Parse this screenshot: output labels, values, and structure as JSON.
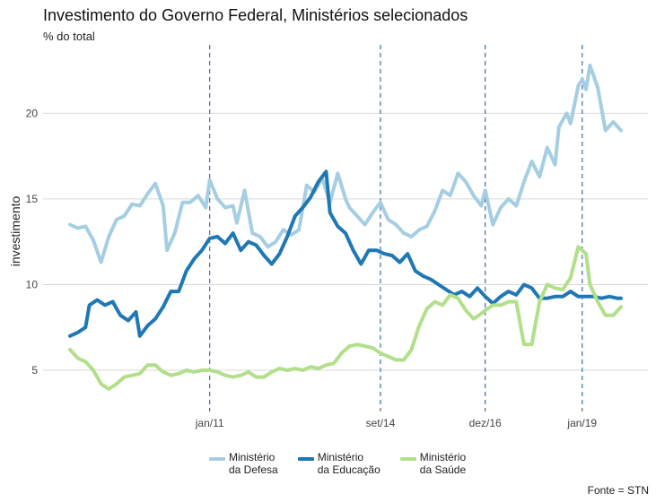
{
  "title": "Investimento do Governo Federal, Ministérios selecionados",
  "subtitle": "% do total",
  "caption": "Fonte = STN",
  "chart_data": {
    "type": "line",
    "title": "Investimento do Governo Federal, Ministérios selecionados",
    "subtitle": "% do total",
    "xlabel": "",
    "ylabel": "investimento",
    "x_range": [
      "2008-01",
      "2019-11"
    ],
    "ylim": [
      2.8,
      24.0
    ],
    "yticks": [
      5,
      10,
      15,
      20
    ],
    "xticks": [
      {
        "date": "2011-01",
        "label": "jan/11"
      },
      {
        "date": "2014-09",
        "label": "set/14"
      },
      {
        "date": "2016-12",
        "label": "dez/16"
      },
      {
        "date": "2019-01",
        "label": "jan/19"
      }
    ],
    "vlines": [
      "2011-01",
      "2014-09",
      "2016-12",
      "2019-01"
    ],
    "grid": "horizontal major",
    "legend_position": "bottom",
    "series": [
      {
        "name": "Ministério\nda Defesa",
        "color": "#a6cee3",
        "points": [
          [
            "2008-01",
            13.5
          ],
          [
            "2008-03",
            13.3
          ],
          [
            "2008-05",
            13.4
          ],
          [
            "2008-07",
            12.6
          ],
          [
            "2008-09",
            11.3
          ],
          [
            "2008-11",
            12.8
          ],
          [
            "2009-01",
            13.8
          ],
          [
            "2009-03",
            14.0
          ],
          [
            "2009-05",
            14.7
          ],
          [
            "2009-07",
            14.6
          ],
          [
            "2009-09",
            15.3
          ],
          [
            "2009-11",
            15.9
          ],
          [
            "2010-01",
            14.6
          ],
          [
            "2010-02",
            12.0
          ],
          [
            "2010-04",
            13.0
          ],
          [
            "2010-06",
            14.8
          ],
          [
            "2010-08",
            14.8
          ],
          [
            "2010-10",
            15.2
          ],
          [
            "2010-12",
            14.5
          ],
          [
            "2011-01",
            16.1
          ],
          [
            "2011-03",
            15.0
          ],
          [
            "2011-05",
            14.5
          ],
          [
            "2011-07",
            14.6
          ],
          [
            "2011-08",
            13.6
          ],
          [
            "2011-10",
            15.5
          ],
          [
            "2011-12",
            13.0
          ],
          [
            "2012-02",
            12.8
          ],
          [
            "2012-04",
            12.2
          ],
          [
            "2012-06",
            12.5
          ],
          [
            "2012-08",
            13.2
          ],
          [
            "2012-10",
            12.9
          ],
          [
            "2012-12",
            13.2
          ],
          [
            "2013-02",
            15.8
          ],
          [
            "2013-04",
            15.4
          ],
          [
            "2013-06",
            16.2
          ],
          [
            "2013-08",
            14.8
          ],
          [
            "2013-10",
            16.5
          ],
          [
            "2013-12",
            15.0
          ],
          [
            "2014-01",
            14.5
          ],
          [
            "2014-03",
            14.0
          ],
          [
            "2014-05",
            13.5
          ],
          [
            "2014-07",
            14.2
          ],
          [
            "2014-09",
            14.8
          ],
          [
            "2014-11",
            13.8
          ],
          [
            "2015-01",
            13.5
          ],
          [
            "2015-03",
            13.0
          ],
          [
            "2015-05",
            12.8
          ],
          [
            "2015-07",
            13.2
          ],
          [
            "2015-09",
            13.4
          ],
          [
            "2015-11",
            14.3
          ],
          [
            "2016-01",
            15.5
          ],
          [
            "2016-03",
            15.2
          ],
          [
            "2016-05",
            16.5
          ],
          [
            "2016-07",
            16.0
          ],
          [
            "2016-09",
            15.2
          ],
          [
            "2016-11",
            14.6
          ],
          [
            "2016-12",
            15.5
          ],
          [
            "2017-02",
            13.5
          ],
          [
            "2017-04",
            14.5
          ],
          [
            "2017-06",
            15.0
          ],
          [
            "2017-08",
            14.6
          ],
          [
            "2017-10",
            16.0
          ],
          [
            "2017-12",
            17.2
          ],
          [
            "2018-02",
            16.3
          ],
          [
            "2018-04",
            18.0
          ],
          [
            "2018-06",
            17.0
          ],
          [
            "2018-07",
            19.2
          ],
          [
            "2018-09",
            20.0
          ],
          [
            "2018-10",
            19.4
          ],
          [
            "2018-12",
            21.6
          ],
          [
            "2019-01",
            22.0
          ],
          [
            "2019-02",
            21.4
          ],
          [
            "2019-03",
            22.8
          ],
          [
            "2019-05",
            21.5
          ],
          [
            "2019-07",
            19.0
          ],
          [
            "2019-09",
            19.5
          ],
          [
            "2019-11",
            19.0
          ]
        ]
      },
      {
        "name": "Ministério\nda Educação",
        "color": "#1f78b4",
        "points": [
          [
            "2008-01",
            7.0
          ],
          [
            "2008-03",
            7.2
          ],
          [
            "2008-05",
            7.5
          ],
          [
            "2008-06",
            8.8
          ],
          [
            "2008-08",
            9.1
          ],
          [
            "2008-10",
            8.8
          ],
          [
            "2008-12",
            9.0
          ],
          [
            "2009-02",
            8.2
          ],
          [
            "2009-04",
            7.9
          ],
          [
            "2009-06",
            8.4
          ],
          [
            "2009-07",
            7.0
          ],
          [
            "2009-09",
            7.6
          ],
          [
            "2009-11",
            8.0
          ],
          [
            "2010-01",
            8.7
          ],
          [
            "2010-03",
            9.6
          ],
          [
            "2010-05",
            9.6
          ],
          [
            "2010-07",
            10.8
          ],
          [
            "2010-09",
            11.5
          ],
          [
            "2010-11",
            12.0
          ],
          [
            "2011-01",
            12.7
          ],
          [
            "2011-03",
            12.8
          ],
          [
            "2011-05",
            12.4
          ],
          [
            "2011-07",
            13.0
          ],
          [
            "2011-09",
            12.0
          ],
          [
            "2011-11",
            12.5
          ],
          [
            "2012-01",
            12.3
          ],
          [
            "2012-03",
            11.7
          ],
          [
            "2012-05",
            11.2
          ],
          [
            "2012-07",
            11.8
          ],
          [
            "2012-09",
            12.8
          ],
          [
            "2012-11",
            14.0
          ],
          [
            "2013-01",
            14.5
          ],
          [
            "2013-03",
            15.1
          ],
          [
            "2013-05",
            16.0
          ],
          [
            "2013-07",
            16.6
          ],
          [
            "2013-08",
            14.2
          ],
          [
            "2013-10",
            13.4
          ],
          [
            "2013-12",
            13.0
          ],
          [
            "2014-02",
            12.0
          ],
          [
            "2014-04",
            11.2
          ],
          [
            "2014-06",
            12.0
          ],
          [
            "2014-08",
            12.0
          ],
          [
            "2014-10",
            11.8
          ],
          [
            "2014-12",
            11.7
          ],
          [
            "2015-02",
            11.3
          ],
          [
            "2015-04",
            11.8
          ],
          [
            "2015-06",
            10.8
          ],
          [
            "2015-08",
            10.5
          ],
          [
            "2015-10",
            10.3
          ],
          [
            "2015-12",
            10.0
          ],
          [
            "2016-02",
            9.7
          ],
          [
            "2016-04",
            9.4
          ],
          [
            "2016-06",
            9.6
          ],
          [
            "2016-08",
            9.3
          ],
          [
            "2016-10",
            9.8
          ],
          [
            "2016-12",
            9.3
          ],
          [
            "2017-02",
            8.9
          ],
          [
            "2017-04",
            9.3
          ],
          [
            "2017-06",
            9.6
          ],
          [
            "2017-08",
            9.4
          ],
          [
            "2017-10",
            10.0
          ],
          [
            "2017-12",
            9.8
          ],
          [
            "2018-02",
            9.2
          ],
          [
            "2018-04",
            9.2
          ],
          [
            "2018-06",
            9.3
          ],
          [
            "2018-08",
            9.3
          ],
          [
            "2018-10",
            9.6
          ],
          [
            "2018-12",
            9.3
          ],
          [
            "2019-02",
            9.3
          ],
          [
            "2019-04",
            9.3
          ],
          [
            "2019-06",
            9.2
          ],
          [
            "2019-08",
            9.3
          ],
          [
            "2019-10",
            9.2
          ],
          [
            "2019-11",
            9.2
          ]
        ]
      },
      {
        "name": "Ministério\nda Saúde",
        "color": "#b2df8a",
        "points": [
          [
            "2008-01",
            6.2
          ],
          [
            "2008-03",
            5.7
          ],
          [
            "2008-05",
            5.5
          ],
          [
            "2008-07",
            5.0
          ],
          [
            "2008-09",
            4.2
          ],
          [
            "2008-11",
            3.9
          ],
          [
            "2009-01",
            4.2
          ],
          [
            "2009-03",
            4.6
          ],
          [
            "2009-05",
            4.7
          ],
          [
            "2009-07",
            4.8
          ],
          [
            "2009-09",
            5.3
          ],
          [
            "2009-11",
            5.3
          ],
          [
            "2010-01",
            4.9
          ],
          [
            "2010-03",
            4.7
          ],
          [
            "2010-05",
            4.8
          ],
          [
            "2010-07",
            5.0
          ],
          [
            "2010-09",
            4.9
          ],
          [
            "2010-11",
            5.0
          ],
          [
            "2011-01",
            5.0
          ],
          [
            "2011-03",
            4.9
          ],
          [
            "2011-05",
            4.7
          ],
          [
            "2011-07",
            4.6
          ],
          [
            "2011-09",
            4.7
          ],
          [
            "2011-11",
            4.9
          ],
          [
            "2012-01",
            4.6
          ],
          [
            "2012-03",
            4.6
          ],
          [
            "2012-05",
            4.9
          ],
          [
            "2012-07",
            5.1
          ],
          [
            "2012-09",
            5.0
          ],
          [
            "2012-11",
            5.1
          ],
          [
            "2013-01",
            5.0
          ],
          [
            "2013-03",
            5.2
          ],
          [
            "2013-05",
            5.1
          ],
          [
            "2013-07",
            5.3
          ],
          [
            "2013-09",
            5.4
          ],
          [
            "2013-11",
            6.0
          ],
          [
            "2014-01",
            6.4
          ],
          [
            "2014-03",
            6.5
          ],
          [
            "2014-05",
            6.4
          ],
          [
            "2014-07",
            6.3
          ],
          [
            "2014-09",
            6.0
          ],
          [
            "2014-11",
            5.8
          ],
          [
            "2015-01",
            5.6
          ],
          [
            "2015-03",
            5.6
          ],
          [
            "2015-05",
            6.2
          ],
          [
            "2015-07",
            7.6
          ],
          [
            "2015-09",
            8.6
          ],
          [
            "2015-11",
            9.0
          ],
          [
            "2016-01",
            8.8
          ],
          [
            "2016-03",
            9.4
          ],
          [
            "2016-05",
            9.2
          ],
          [
            "2016-07",
            8.5
          ],
          [
            "2016-09",
            8.0
          ],
          [
            "2016-11",
            8.3
          ],
          [
            "2016-12",
            8.5
          ],
          [
            "2017-02",
            8.8
          ],
          [
            "2017-04",
            8.8
          ],
          [
            "2017-06",
            9.0
          ],
          [
            "2017-08",
            9.0
          ],
          [
            "2017-10",
            6.5
          ],
          [
            "2017-12",
            6.5
          ],
          [
            "2018-02",
            9.0
          ],
          [
            "2018-04",
            10.0
          ],
          [
            "2018-06",
            9.8
          ],
          [
            "2018-08",
            9.7
          ],
          [
            "2018-10",
            10.4
          ],
          [
            "2018-12",
            12.2
          ],
          [
            "2019-02",
            11.8
          ],
          [
            "2019-03",
            10.0
          ],
          [
            "2019-05",
            9.0
          ],
          [
            "2019-07",
            8.2
          ],
          [
            "2019-09",
            8.2
          ],
          [
            "2019-11",
            8.7
          ]
        ]
      }
    ]
  }
}
